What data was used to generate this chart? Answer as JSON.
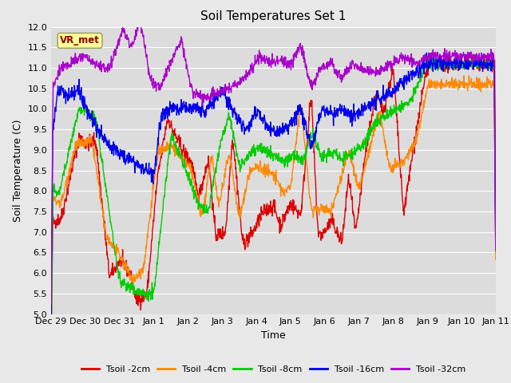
{
  "title": "Soil Temperatures Set 1",
  "xlabel": "Time",
  "ylabel": "Soil Temperature (C)",
  "ylim": [
    5.0,
    12.0
  ],
  "yticks": [
    5.0,
    5.5,
    6.0,
    6.5,
    7.0,
    7.5,
    8.0,
    8.5,
    9.0,
    9.5,
    10.0,
    10.5,
    11.0,
    11.5,
    12.0
  ],
  "xtick_labels": [
    "Dec 29",
    "Dec 30",
    "Dec 31",
    "Jan 1",
    "Jan 2",
    "Jan 3",
    "Jan 4",
    "Jan 5",
    "Jan 6",
    "Jan 7",
    "Jan 8",
    "Jan 9",
    "Jan 10",
    "Jan 11"
  ],
  "series_colors": [
    "#dd0000",
    "#ff8800",
    "#00cc00",
    "#0000ee",
    "#aa00cc"
  ],
  "series_labels": [
    "Tsoil -2cm",
    "Tsoil -4cm",
    "Tsoil -8cm",
    "Tsoil -16cm",
    "Tsoil -32cm"
  ],
  "bg_color": "#e8e8e8",
  "plot_bg_color": "#dcdcdc",
  "annotation_text": "VR_met",
  "annotation_bg": "#ffff99",
  "annotation_border": "#888855",
  "n_points": 1300
}
